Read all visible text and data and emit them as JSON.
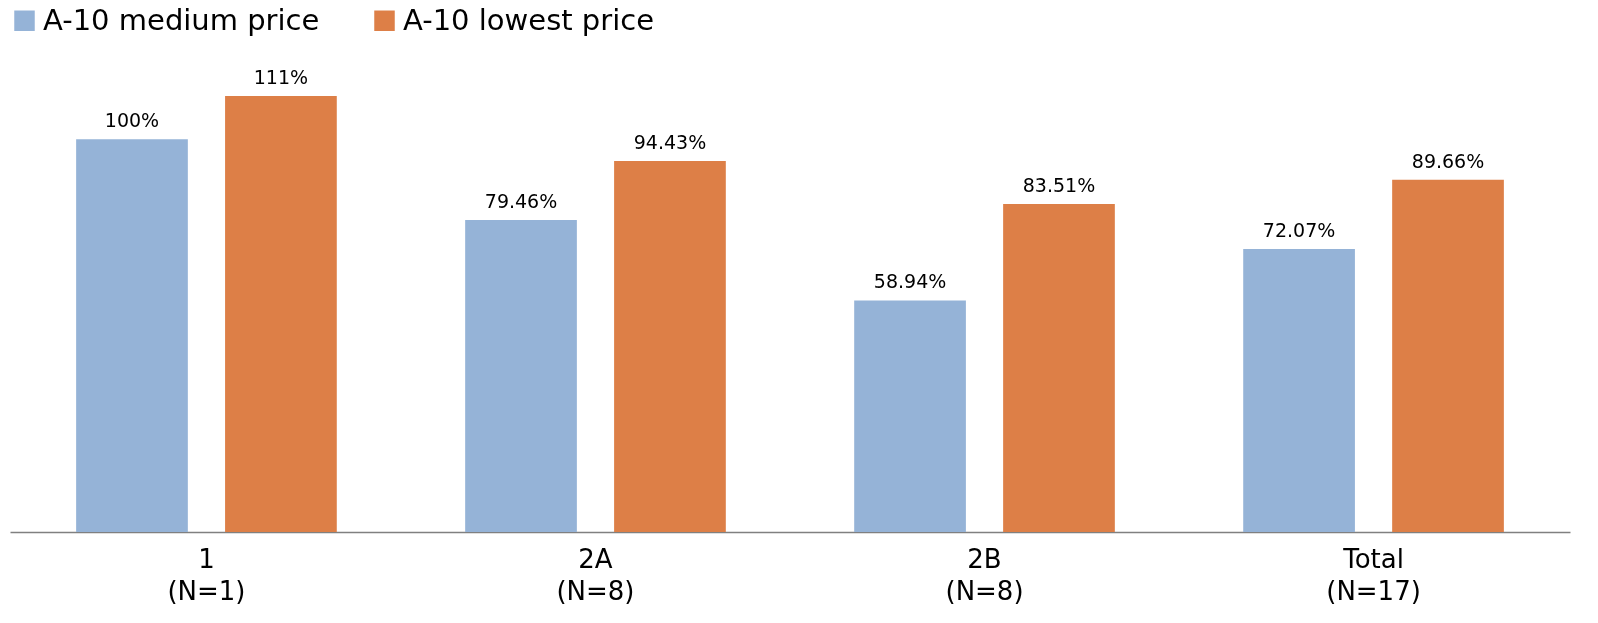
{
  "chart_data": {
    "type": "bar",
    "categories": [
      "1\n(N=1)",
      "2A\n(N=8)",
      "2B\n(N=8)",
      "Total\n(N=17)"
    ],
    "series": [
      {
        "name": "A-10 medium price",
        "color": "#95b3d7",
        "values": [
          100,
          79.46,
          58.94,
          72.07
        ],
        "value_labels": [
          "100%",
          "79.46%",
          "58.94%",
          "72.07%"
        ]
      },
      {
        "name": "A-10 lowest price",
        "color": "#dd7f47",
        "values": [
          111,
          94.43,
          83.51,
          89.66
        ],
        "value_labels": [
          "111%",
          "94.43%",
          "83.51%",
          "89.66%"
        ]
      }
    ],
    "legend": "top"
  }
}
